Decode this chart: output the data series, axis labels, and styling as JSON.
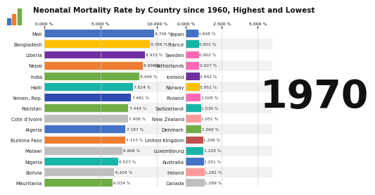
{
  "title": "Neonatal Mortality Rate by Country since 1960, Highest and Lowest",
  "year": "1970",
  "left_countries": [
    "Mali",
    "Bangladesh",
    "Liberia",
    "Nepal",
    "India",
    "Haiti",
    "Yemen, Rep.",
    "Pakistan",
    "Cote d'Ivoire",
    "Algeria",
    "Burkina Faso",
    "Malawi",
    "Nigeria",
    "Bolivia",
    "Mauritania"
  ],
  "left_values": [
    9.706,
    9.356,
    8.915,
    8.696,
    8.409,
    7.824,
    7.681,
    7.444,
    7.406,
    7.187,
    7.153,
    6.906,
    6.527,
    6.204,
    6.034
  ],
  "left_colors": [
    "#4472C4",
    "#FFC000",
    "#7030A0",
    "#ED7D31",
    "#70AD47",
    "#17B5A7",
    "#2E4BAF",
    "#70AD47",
    "#BFBFBF",
    "#4472C4",
    "#ED7D31",
    "#BFBFBF",
    "#17B5A7",
    "#BFBFBF",
    "#70AD47"
  ],
  "right_countries": [
    "Japan",
    "France",
    "Sweden",
    "Netherlands",
    "Iceland",
    "Norway",
    "Finland",
    "Switzerland",
    "New Zealand",
    "Denmark",
    "United Kingdom",
    "Luxembourg",
    "Australia",
    "Ireland",
    "Canada"
  ],
  "right_values": [
    0.848,
    0.901,
    0.902,
    0.927,
    0.942,
    0.952,
    1.028,
    1.039,
    1.051,
    1.069,
    1.206,
    1.229,
    1.251,
    1.282,
    1.289
  ],
  "right_colors": [
    "#4472C4",
    "#17B5A7",
    "#FF69B4",
    "#FF69B4",
    "#7030A0",
    "#FFC000",
    "#FF69B4",
    "#17B5A7",
    "#FF9999",
    "#70AD47",
    "#C0504D",
    "#17B5A7",
    "#4472C4",
    "#FF9999",
    "#BFBFBF"
  ],
  "bg_color": "#FFFFFF",
  "row_alt_color": "#F2F2F2",
  "bar_height": 0.72,
  "tick_fontsize": 4.5,
  "label_fontsize": 5.0,
  "value_fontsize": 4.2,
  "year_fontsize": 40,
  "title_fontsize": 7.5,
  "left_xlim": [
    0,
    11.5
  ],
  "right_xlim": [
    0,
    6.0
  ]
}
